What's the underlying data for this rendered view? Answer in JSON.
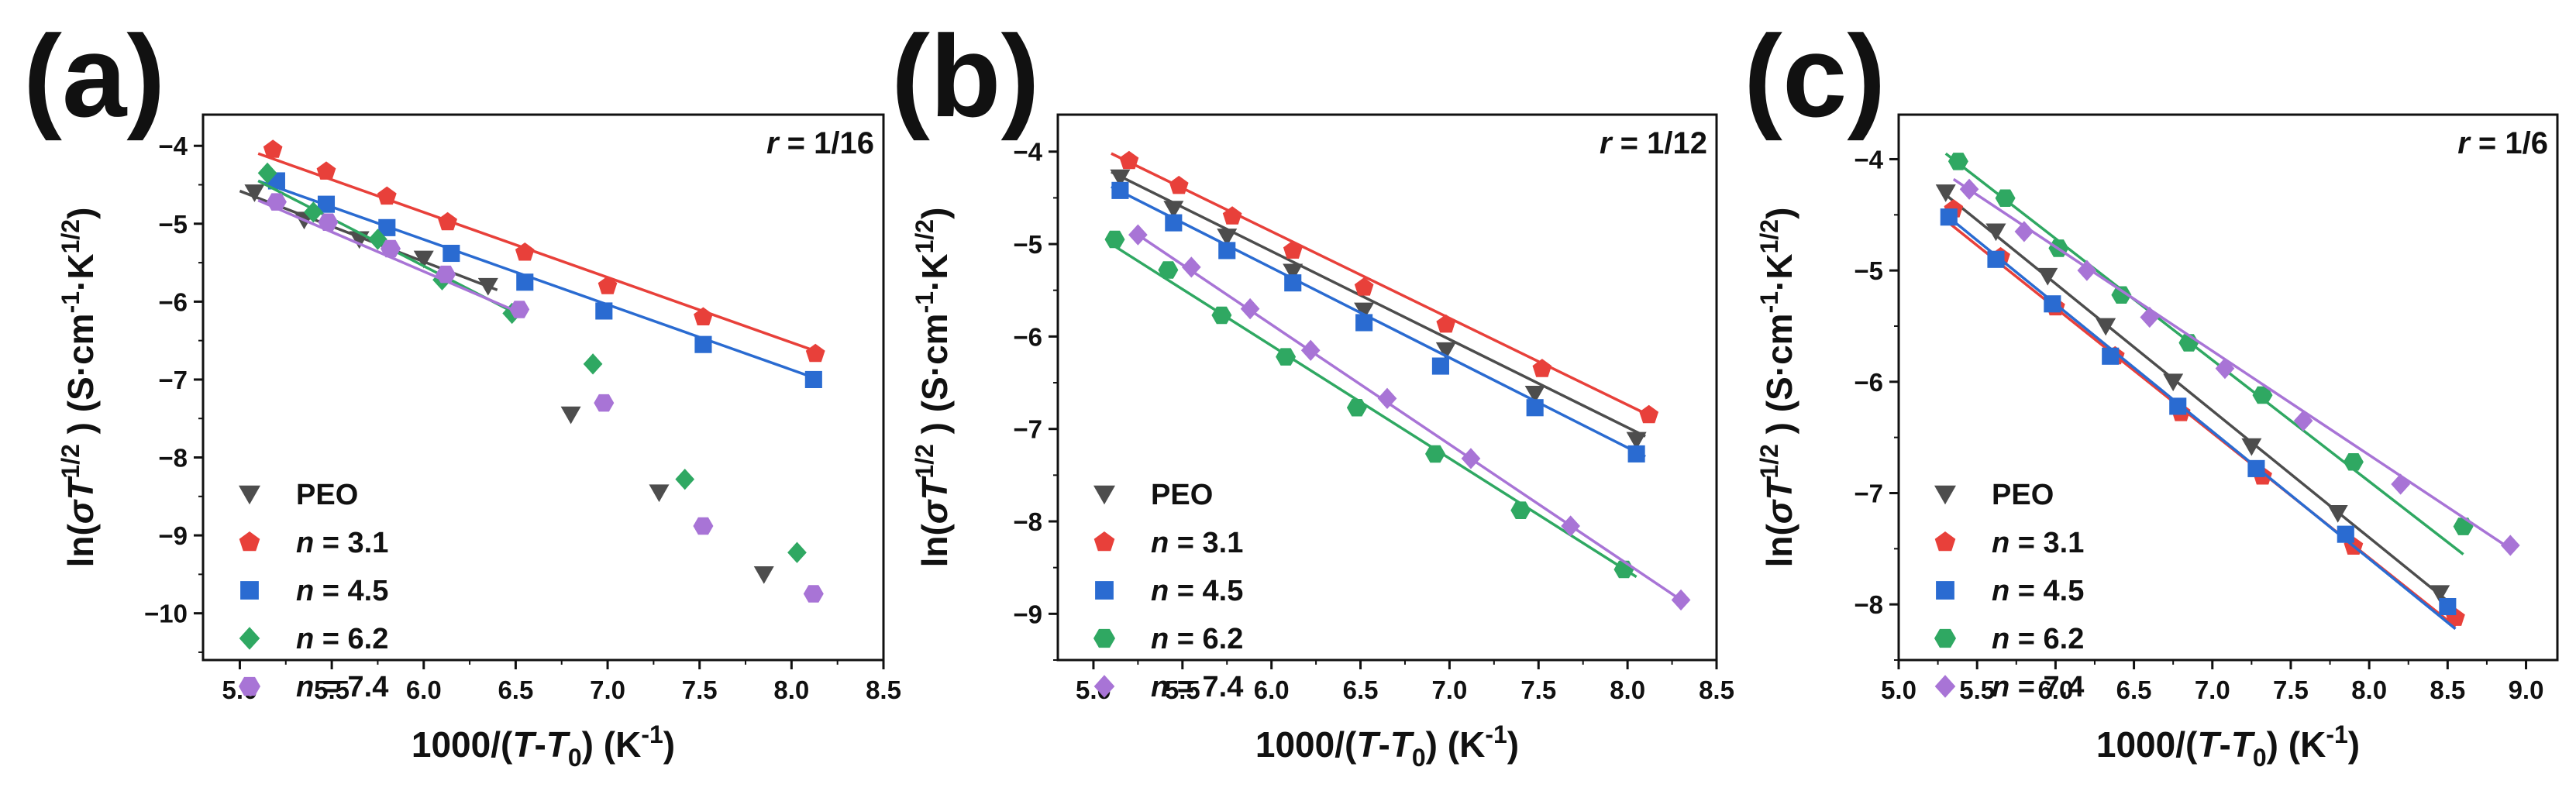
{
  "figure": {
    "panels": [
      "(a)",
      "(b)",
      "(c)"
    ]
  },
  "chart_data": [
    {
      "type": "scatter",
      "panel": "(a)",
      "annotation": "r = 1/16",
      "xlabel": "1000/(T-T0) (K-1)",
      "ylabel": "ln(σT1/2) (S·cm-1·K1/2)",
      "xlim": [
        4.8,
        8.5
      ],
      "ylim": [
        -10.6,
        -3.6
      ],
      "xticks": [
        "5.0",
        "5.5",
        "6.0",
        "6.5",
        "7.0",
        "7.5",
        "8.0",
        "8.5"
      ],
      "yticks": [
        "-4",
        "-5",
        "-6",
        "-7",
        "-8",
        "-9",
        "-10"
      ],
      "grid": false,
      "legend": "bottom-left",
      "series": [
        {
          "name": "PEO",
          "marker": "triangle-down",
          "color": "#4d4d4d",
          "x": [
            5.08,
            5.35,
            5.65,
            6.0,
            6.35,
            6.8,
            7.28,
            7.85
          ],
          "y": [
            -4.6,
            -4.95,
            -5.2,
            -5.45,
            -5.8,
            -7.45,
            -8.45,
            -9.5
          ],
          "fit": {
            "x": [
              5.0,
              6.4
            ],
            "y": [
              -4.58,
              -5.85
            ]
          }
        },
        {
          "name": "n = 3.1",
          "marker": "pentagon",
          "color": "#e8403a",
          "x": [
            5.18,
            5.47,
            5.8,
            6.13,
            6.55,
            7.0,
            7.52,
            8.13
          ],
          "y": [
            -4.05,
            -4.33,
            -4.65,
            -4.98,
            -5.37,
            -5.8,
            -6.2,
            -6.67
          ],
          "fit": {
            "x": [
              5.1,
              8.15
            ],
            "y": [
              -4.1,
              -6.65
            ]
          }
        },
        {
          "name": "n = 4.5",
          "marker": "square",
          "color": "#2a6bd1",
          "x": [
            5.2,
            5.47,
            5.8,
            6.15,
            6.55,
            6.98,
            7.52,
            8.12
          ],
          "y": [
            -4.45,
            -4.75,
            -5.05,
            -5.38,
            -5.75,
            -6.12,
            -6.55,
            -7.0
          ],
          "fit": {
            "x": [
              5.1,
              8.15
            ],
            "y": [
              -4.45,
              -7.0
            ]
          }
        },
        {
          "name": "n = 6.2",
          "marker": "diamond",
          "color": "#2fa862",
          "x": [
            5.15,
            5.4,
            5.75,
            6.1,
            6.48,
            6.92,
            7.42,
            8.03
          ],
          "y": [
            -4.35,
            -4.85,
            -5.2,
            -5.72,
            -6.15,
            -6.8,
            -8.28,
            -9.22
          ],
          "fit": {
            "x": [
              5.1,
              6.5
            ],
            "y": [
              -4.45,
              -6.15
            ]
          }
        },
        {
          "name": "n = 7.4",
          "marker": "hexagon",
          "color": "#a874d6",
          "x": [
            5.2,
            5.48,
            5.82,
            6.12,
            6.52,
            6.98,
            7.52,
            8.12
          ],
          "y": [
            -4.72,
            -4.98,
            -5.32,
            -5.65,
            -6.1,
            -7.3,
            -8.88,
            -9.75
          ],
          "fit": {
            "x": [
              5.1,
              6.5
            ],
            "y": [
              -4.7,
              -6.12
            ]
          }
        }
      ]
    },
    {
      "type": "scatter",
      "panel": "(b)",
      "annotation": "r = 1/12",
      "xlabel": "1000/(T-T0) (K-1)",
      "ylabel": "ln(σT1/2) (S·cm-1·K1/2)",
      "xlim": [
        4.8,
        8.5
      ],
      "ylim": [
        -9.5,
        -3.6
      ],
      "xticks": [
        "5.0",
        "5.5",
        "6.0",
        "6.5",
        "7.0",
        "7.5",
        "8.0",
        "8.5"
      ],
      "yticks": [
        "-4",
        "-5",
        "-6",
        "-7",
        "-8",
        "-9"
      ],
      "grid": false,
      "legend": "bottom-left",
      "series": [
        {
          "name": "PEO",
          "marker": "triangle-down",
          "color": "#4d4d4d",
          "x": [
            5.15,
            5.45,
            5.75,
            6.12,
            6.52,
            6.98,
            7.48,
            8.05
          ],
          "y": [
            -4.28,
            -4.62,
            -4.92,
            -5.3,
            -5.72,
            -6.15,
            -6.62,
            -7.12
          ],
          "fit": {
            "x": [
              5.1,
              8.1
            ],
            "y": [
              -4.22,
              -7.08
            ]
          }
        },
        {
          "name": "n = 3.1",
          "marker": "pentagon",
          "color": "#e8403a",
          "x": [
            5.2,
            5.48,
            5.78,
            6.12,
            6.52,
            6.98,
            7.52,
            8.12
          ],
          "y": [
            -4.1,
            -4.37,
            -4.7,
            -5.07,
            -5.47,
            -5.87,
            -6.35,
            -6.85
          ],
          "fit": {
            "x": [
              5.1,
              8.15
            ],
            "y": [
              -4.02,
              -6.88
            ]
          }
        },
        {
          "name": "n = 4.5",
          "marker": "square",
          "color": "#2a6bd1",
          "x": [
            5.15,
            5.45,
            5.75,
            6.12,
            6.52,
            6.95,
            7.48,
            8.05
          ],
          "y": [
            -4.42,
            -4.77,
            -5.07,
            -5.42,
            -5.85,
            -6.32,
            -6.77,
            -7.27
          ],
          "fit": {
            "x": [
              5.1,
              8.1
            ],
            "y": [
              -4.38,
              -7.3
            ]
          }
        },
        {
          "name": "n = 6.2",
          "marker": "hexagon",
          "color": "#2fa862",
          "x": [
            5.12,
            5.42,
            5.72,
            6.08,
            6.48,
            6.92,
            7.4,
            7.98
          ],
          "y": [
            -4.95,
            -5.28,
            -5.77,
            -6.22,
            -6.77,
            -7.27,
            -7.88,
            -8.52
          ],
          "fit": {
            "x": [
              5.1,
              8.05
            ],
            "y": [
              -5.0,
              -8.6
            ]
          }
        },
        {
          "name": "n = 7.4",
          "marker": "diamond",
          "color": "#a874d6",
          "x": [
            5.25,
            5.55,
            5.88,
            6.22,
            6.65,
            7.12,
            7.68,
            8.3
          ],
          "y": [
            -4.9,
            -5.25,
            -5.7,
            -6.15,
            -6.67,
            -7.32,
            -8.05,
            -8.85
          ],
          "fit": {
            "x": [
              5.25,
              8.3
            ],
            "y": [
              -4.9,
              -8.85
            ]
          }
        }
      ]
    },
    {
      "type": "scatter",
      "panel": "(c)",
      "annotation": "r = 1/6",
      "xlabel": "1000/(T-T0) (K-1)",
      "ylabel": "ln(σT1/2) (S·cm-1·K1/2)",
      "xlim": [
        5.0,
        9.2
      ],
      "ylim": [
        -8.5,
        -3.6
      ],
      "xticks": [
        "5.0",
        "5.5",
        "6.0",
        "6.5",
        "7.0",
        "7.5",
        "8.0",
        "8.5",
        "9.0"
      ],
      "yticks": [
        "-4",
        "-5",
        "-6",
        "-7",
        "-8"
      ],
      "grid": false,
      "legend": "bottom-left",
      "series": [
        {
          "name": "PEO",
          "marker": "triangle-down",
          "color": "#4d4d4d",
          "x": [
            5.3,
            5.62,
            5.95,
            6.32,
            6.75,
            7.25,
            7.8,
            8.45
          ],
          "y": [
            -4.3,
            -4.65,
            -5.05,
            -5.5,
            -6.0,
            -6.58,
            -7.18,
            -7.9
          ],
          "fit": {
            "x": [
              5.3,
              8.5
            ],
            "y": [
              -4.32,
              -7.97
            ]
          }
        },
        {
          "name": "n = 3.1",
          "marker": "pentagon",
          "color": "#e8403a",
          "x": [
            5.35,
            5.65,
            6.0,
            6.38,
            6.8,
            7.32,
            7.9,
            8.55
          ],
          "y": [
            -4.45,
            -4.88,
            -5.33,
            -5.77,
            -6.28,
            -6.85,
            -7.48,
            -8.12
          ],
          "fit": {
            "x": [
              5.3,
              8.55
            ],
            "y": [
              -4.55,
              -8.2
            ]
          }
        },
        {
          "name": "n = 4.5",
          "marker": "square",
          "color": "#2a6bd1",
          "x": [
            5.32,
            5.62,
            5.98,
            6.35,
            6.78,
            7.28,
            7.85,
            8.5
          ],
          "y": [
            -4.52,
            -4.9,
            -5.3,
            -5.77,
            -6.22,
            -6.78,
            -7.37,
            -8.02
          ],
          "fit": {
            "x": [
              5.3,
              8.55
            ],
            "y": [
              -4.5,
              -8.22
            ]
          }
        },
        {
          "name": "n = 6.2",
          "marker": "hexagon",
          "color": "#2fa862",
          "x": [
            5.38,
            5.68,
            6.02,
            6.42,
            6.85,
            7.32,
            7.9,
            8.6
          ],
          "y": [
            -4.02,
            -4.35,
            -4.8,
            -5.22,
            -5.65,
            -6.12,
            -6.72,
            -7.3
          ],
          "fit": {
            "x": [
              5.3,
              8.6
            ],
            "y": [
              -3.95,
              -7.55
            ]
          }
        },
        {
          "name": "n = 7.4",
          "marker": "diamond",
          "color": "#a874d6",
          "x": [
            5.45,
            5.8,
            6.2,
            6.6,
            7.08,
            7.58,
            8.2,
            8.9
          ],
          "y": [
            -4.27,
            -4.65,
            -5.0,
            -5.42,
            -5.88,
            -6.35,
            -6.92,
            -7.47
          ],
          "fit": {
            "x": [
              5.35,
              8.9
            ],
            "y": [
              -4.18,
              -7.5
            ]
          }
        }
      ]
    }
  ]
}
